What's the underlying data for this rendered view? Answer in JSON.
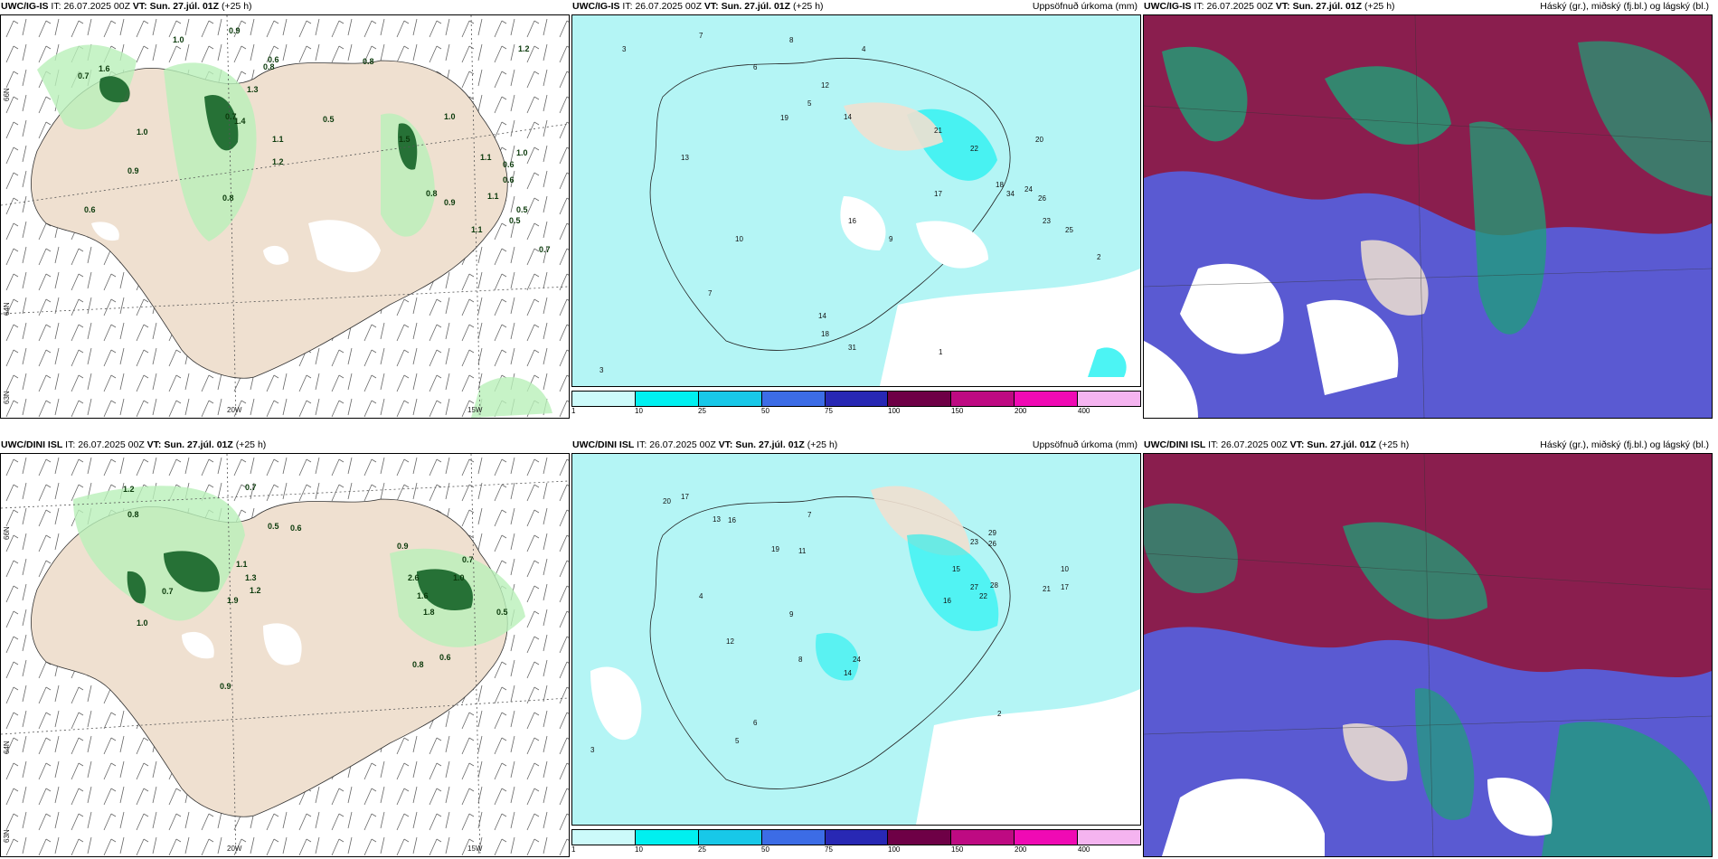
{
  "panels": {
    "p1": {
      "model": "UWC/IG-IS",
      "it_label": "IT:",
      "it": "26.07.2025 00Z",
      "vt_label": "VT:",
      "vt": "Sun. 27.júl. 01Z",
      "lead": "(+25 h)",
      "right": ""
    },
    "p2": {
      "model": "UWC/IG-IS",
      "it_label": "IT:",
      "it": "26.07.2025 00Z",
      "vt_label": "VT:",
      "vt": "Sun. 27.júl. 01Z",
      "lead": "(+25 h)",
      "right": "Uppsöfnuð úrkoma (mm)"
    },
    "p3": {
      "model": "UWC/IG-IS",
      "it_label": "IT:",
      "it": "26.07.2025 00Z",
      "vt_label": "VT:",
      "vt": "Sun. 27.júl. 01Z",
      "lead": "(+25 h)",
      "right": "Háský (gr.), miðský (fj.bl.) og lágský (bl.)"
    },
    "p4": {
      "model": "UWC/DINI ISL",
      "it_label": "IT:",
      "it": "26.07.2025 00Z",
      "vt_label": "VT:",
      "vt": "Sun. 27.júl. 01Z",
      "lead": "(+25 h)",
      "right": ""
    },
    "p5": {
      "model": "UWC/DINI ISL",
      "it_label": "IT:",
      "it": "26.07.2025 00Z",
      "vt_label": "VT:",
      "vt": "Sun. 27.júl. 01Z",
      "lead": "(+25 h)",
      "right": "Uppsöfnuð úrkoma (mm)"
    },
    "p6": {
      "model": "UWC/DINI ISL",
      "it_label": "IT:",
      "it": "26.07.2025 00Z",
      "vt_label": "VT:",
      "vt": "Sun. 27.júl. 01Z",
      "lead": "(+25 h)",
      "right": "Háský (gr.), miðský (fj.bl.) og lágský (bl.)"
    }
  },
  "axes": {
    "lat66": "66N",
    "lat64": "64N",
    "lat63": "63N",
    "lon20": "20W",
    "lon15": "15W",
    "lat65": "65N"
  },
  "colorbar": {
    "ticks": [
      "1",
      "10",
      "25",
      "50",
      "75",
      "100",
      "150",
      "200",
      "400"
    ],
    "colors": [
      "#ccfafa",
      "#00f0f0",
      "#18c8e8",
      "#3c6ce6",
      "#2828b4",
      "#6e0046",
      "#be0a82",
      "#f00ab4",
      "#f5b4f0"
    ]
  },
  "colors": {
    "land": "#efe0d0",
    "sea": "#ffffff",
    "rain_sea": "#b4f5f5",
    "light_green": "#b9f0b9",
    "dark_green": "#0b5a1e",
    "cloud_high": "#5a5ad2",
    "cloud_mid": "#8a1e4e",
    "cloud_low": "#1ea078"
  },
  "p1_values": [
    "1.6",
    "1.0",
    "0.9",
    "0.7",
    "0.8",
    "0.6",
    "1.3",
    "1.4",
    "1.2",
    "0.5",
    "1.0",
    "0.8",
    "1.1",
    "0.9",
    "1.0",
    "0.6",
    "0.5",
    "0.7",
    "1.5",
    "0.8",
    "1.1",
    "0.9",
    "1.1",
    "0.8",
    "0.6",
    "1.1",
    "1.0",
    "0.5",
    "0.7",
    "0.6",
    "1.2"
  ],
  "p2_values": [
    "3",
    "7",
    "8",
    "6",
    "5",
    "4",
    "12",
    "14",
    "19",
    "13",
    "10",
    "7",
    "22",
    "21",
    "20",
    "17",
    "18",
    "34",
    "24",
    "26",
    "25",
    "23",
    "9",
    "16",
    "2",
    "1",
    "3",
    "14",
    "18",
    "31"
  ],
  "p4_values": [
    "1.2",
    "0.8",
    "0.7",
    "1.0",
    "0.5",
    "0.6",
    "1.1",
    "1.3",
    "0.9",
    "1.9",
    "0.7",
    "1.0",
    "2.6",
    "1.6",
    "0.8",
    "0.7",
    "0.5",
    "0.6",
    "1.2",
    "1.8",
    "0.9"
  ],
  "p5_values": [
    "20",
    "17",
    "13",
    "16",
    "19",
    "11",
    "29",
    "23",
    "26",
    "15",
    "27",
    "28",
    "22",
    "21",
    "17",
    "16",
    "10",
    "24",
    "14",
    "12",
    "3",
    "7",
    "8",
    "9",
    "4",
    "5",
    "6",
    "2"
  ]
}
